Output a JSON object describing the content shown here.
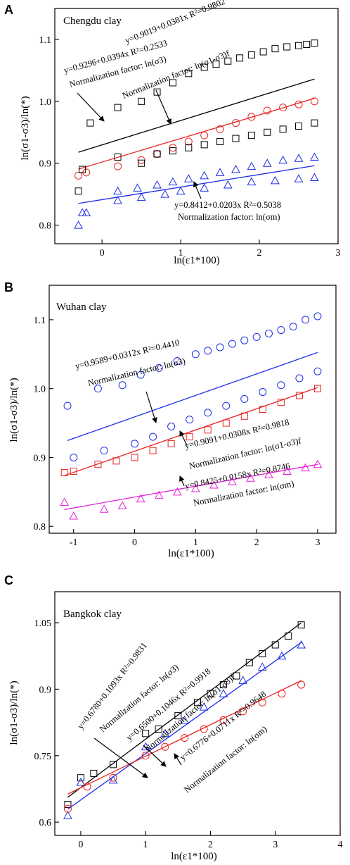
{
  "figure": {
    "panels": [
      {
        "letter": "A",
        "title": "Chengdu clay"
      },
      {
        "letter": "B",
        "title": "Wuhan clay"
      },
      {
        "letter": "C",
        "title": "Bangkok clay"
      }
    ]
  },
  "chart_data": [
    {
      "type": "scatter",
      "panel": "A",
      "title": "Chengdu clay",
      "xlabel": "ln(ε1*100)",
      "ylabel": "ln(σ1-σ3)/ln(*)",
      "xlim": [
        -0.6,
        3.0
      ],
      "ylim": [
        0.77,
        1.15
      ],
      "xticks": [
        0,
        1,
        2,
        3
      ],
      "yticks": [
        0.8,
        0.9,
        1.0,
        1.1
      ],
      "grid": false,
      "series": [
        {
          "marker": "square",
          "color": "#000000",
          "fit": {
            "a": 0.9296,
            "b": 0.0394
          },
          "x": [
            -0.3,
            -0.15,
            0.2,
            0.5,
            0.7,
            0.9,
            1.1,
            1.3,
            1.45,
            1.6,
            1.75,
            1.9,
            2.05,
            2.2,
            2.35,
            2.5,
            2.6,
            2.7
          ],
          "y": [
            0.855,
            0.965,
            0.99,
            1.0,
            1.015,
            1.03,
            1.045,
            1.055,
            1.06,
            1.065,
            1.07,
            1.075,
            1.08,
            1.085,
            1.088,
            1.09,
            1.092,
            1.094
          ]
        },
        {
          "marker": "circle",
          "color": "#e8231f",
          "fit": {
            "a": 0.9019,
            "b": 0.0381
          },
          "x": [
            -0.3,
            -0.2,
            0.2,
            0.5,
            0.7,
            0.9,
            1.1,
            1.3,
            1.5,
            1.7,
            1.9,
            2.1,
            2.3,
            2.5,
            2.7
          ],
          "y": [
            0.88,
            0.885,
            0.895,
            0.905,
            0.915,
            0.925,
            0.935,
            0.945,
            0.955,
            0.965,
            0.975,
            0.985,
            0.99,
            0.995,
            1.0
          ]
        },
        {
          "marker": "square",
          "color": "#000000",
          "fit": null,
          "x": [
            -0.25,
            0.2,
            0.5,
            0.7,
            0.9,
            1.1,
            1.3,
            1.5,
            1.7,
            1.9,
            2.1,
            2.3,
            2.5,
            2.7
          ],
          "y": [
            0.89,
            0.91,
            0.9,
            0.915,
            0.92,
            0.925,
            0.93,
            0.935,
            0.94,
            0.945,
            0.95,
            0.955,
            0.96,
            0.965
          ]
        },
        {
          "marker": "triangle",
          "color": "#1c2ee8",
          "fit": {
            "a": 0.8412,
            "b": 0.0203
          },
          "x": [
            -0.3,
            -0.2,
            0.2,
            0.45,
            0.7,
            0.9,
            1.1,
            1.3,
            1.5,
            1.7,
            1.9,
            2.1,
            2.3,
            2.5,
            2.7
          ],
          "y": [
            0.8,
            0.82,
            0.855,
            0.86,
            0.865,
            0.87,
            0.875,
            0.88,
            0.885,
            0.89,
            0.895,
            0.9,
            0.905,
            0.908,
            0.91
          ]
        },
        {
          "marker": "triangle",
          "color": "#1c2ee8",
          "fit": null,
          "x": [
            -0.25,
            0.2,
            0.5,
            0.8,
            1.0,
            1.3,
            1.6,
            1.9,
            2.2,
            2.5,
            2.7
          ],
          "y": [
            0.82,
            0.84,
            0.845,
            0.85,
            0.855,
            0.86,
            0.865,
            0.87,
            0.872,
            0.875,
            0.877
          ]
        }
      ],
      "annotations": [
        {
          "text": "y=0.9296+0.0394x R²=0.2533",
          "sub": "Normalization factor: ln(σ3)"
        },
        {
          "text": "y=0.9019+0.0381x R²=0.9802",
          "sub": "Normalization factor: ln(σ1-σ3)f"
        },
        {
          "text": "y=0.8412+0.0203x R²=0.5038",
          "sub": "Normalization factor: ln(σm)"
        }
      ]
    },
    {
      "type": "scatter",
      "panel": "B",
      "title": "Wuhan clay",
      "xlabel": "ln(ε1*100)",
      "ylabel": "ln(σ1-σ3)/ln(*)",
      "xlim": [
        -1.4,
        3.3
      ],
      "ylim": [
        0.79,
        1.15
      ],
      "xticks": [
        -1,
        0,
        1,
        2,
        3
      ],
      "yticks": [
        0.8,
        0.9,
        1.0,
        1.1
      ],
      "grid": false,
      "series": [
        {
          "marker": "circle",
          "color": "#1c2ee8",
          "fit": {
            "a": 0.9589,
            "b": 0.0312
          },
          "x": [
            -1.1,
            -0.6,
            -0.2,
            0.1,
            0.4,
            0.7,
            1.0,
            1.2,
            1.4,
            1.6,
            1.8,
            2.0,
            2.2,
            2.4,
            2.6,
            2.8,
            3.0
          ],
          "y": [
            0.975,
            1.0,
            1.005,
            1.02,
            1.03,
            1.04,
            1.05,
            1.055,
            1.06,
            1.065,
            1.07,
            1.075,
            1.08,
            1.085,
            1.09,
            1.1,
            1.105
          ]
        },
        {
          "marker": "circle",
          "color": "#1c2ee8",
          "fit": null,
          "x": [
            -1.0,
            -0.5,
            0.0,
            0.3,
            0.6,
            0.9,
            1.2,
            1.5,
            1.8,
            2.1,
            2.4,
            2.7,
            3.0
          ],
          "y": [
            0.9,
            0.91,
            0.92,
            0.93,
            0.945,
            0.955,
            0.965,
            0.975,
            0.985,
            0.995,
            1.005,
            1.015,
            1.025
          ]
        },
        {
          "marker": "square",
          "color": "#e8231f",
          "fit": {
            "a": 0.9091,
            "b": 0.0308
          },
          "x": [
            -1.15,
            -1.0,
            -0.6,
            -0.3,
            0.0,
            0.3,
            0.6,
            0.9,
            1.2,
            1.5,
            1.8,
            2.1,
            2.4,
            2.7,
            3.0
          ],
          "y": [
            0.878,
            0.88,
            0.89,
            0.895,
            0.9,
            0.91,
            0.92,
            0.93,
            0.94,
            0.95,
            0.96,
            0.97,
            0.98,
            0.99,
            1.0
          ]
        },
        {
          "marker": "triangle",
          "color": "#e31fd6",
          "fit": {
            "a": 0.8425,
            "b": 0.0158
          },
          "x": [
            -1.15,
            -1.0,
            -0.5,
            -0.2,
            0.1,
            0.4,
            0.7,
            1.0,
            1.3,
            1.6,
            1.9,
            2.2,
            2.5,
            2.8,
            3.0
          ],
          "y": [
            0.835,
            0.815,
            0.825,
            0.83,
            0.84,
            0.845,
            0.85,
            0.855,
            0.86,
            0.865,
            0.87,
            0.875,
            0.88,
            0.885,
            0.89
          ]
        }
      ],
      "annotations": [
        {
          "text": "y=0.9589+0.0312x R²=0.4410",
          "sub": "Normalization factor: ln(σ3)"
        },
        {
          "text": "y=0.9091+0.0308x R²=0.9818",
          "sub": "Normalization factor: ln(σ1-σ3)f"
        },
        {
          "text": "y=0.8425+0.0158x R²=0.8746",
          "sub": "Normalization factor: ln(σm)"
        }
      ]
    },
    {
      "type": "scatter",
      "panel": "C",
      "title": "Bangkok clay",
      "xlabel": "ln(ε1*100)",
      "ylabel": "ln(σ1-σ3)/ln(*)",
      "xlim": [
        -0.4,
        4.0
      ],
      "ylim": [
        0.57,
        1.12
      ],
      "xticks": [
        0,
        1,
        2,
        3,
        4
      ],
      "yticks": [
        0.6,
        0.75,
        0.9,
        1.05
      ],
      "grid": false,
      "series": [
        {
          "marker": "square",
          "color": "#000000",
          "fit": {
            "a": 0.678,
            "b": 0.1093
          },
          "x": [
            -0.2,
            0.0,
            0.2,
            0.5,
            1.0,
            1.2,
            1.5,
            1.8,
            2.0,
            2.2,
            2.4,
            2.6,
            2.8,
            3.0,
            3.2,
            3.4
          ],
          "y": [
            0.64,
            0.7,
            0.71,
            0.73,
            0.8,
            0.81,
            0.84,
            0.87,
            0.89,
            0.91,
            0.93,
            0.96,
            0.98,
            1.0,
            1.02,
            1.045
          ]
        },
        {
          "marker": "triangle",
          "color": "#1c2ee8",
          "fit": {
            "a": 0.65,
            "b": 0.1046
          },
          "x": [
            -0.2,
            0.0,
            0.5,
            1.0,
            1.3,
            1.6,
            1.9,
            2.2,
            2.5,
            2.8,
            3.1,
            3.4
          ],
          "y": [
            0.615,
            0.69,
            0.695,
            0.77,
            0.8,
            0.83,
            0.86,
            0.89,
            0.92,
            0.95,
            0.975,
            1.0
          ]
        },
        {
          "marker": "circle",
          "color": "#e8231f",
          "fit": {
            "a": 0.6776,
            "b": 0.0711
          },
          "x": [
            -0.2,
            0.1,
            0.5,
            1.0,
            1.3,
            1.6,
            1.9,
            2.2,
            2.5,
            2.8,
            3.1,
            3.4
          ],
          "y": [
            0.63,
            0.68,
            0.7,
            0.75,
            0.77,
            0.79,
            0.81,
            0.83,
            0.85,
            0.87,
            0.89,
            0.91
          ]
        }
      ],
      "annotations": [
        {
          "text": "y=0.6780+0.1093x R²=0.9831",
          "sub": "Normalization factor: ln(σ3)"
        },
        {
          "text": "y=0.6500+0.1046x R²=0.9918",
          "sub": "Normalization factor: ln(σ1-σ3)f"
        },
        {
          "text": "y=0.6776+0.0711x R²=0.9648",
          "sub": "Normalization factor: ln(σm)"
        }
      ]
    }
  ]
}
